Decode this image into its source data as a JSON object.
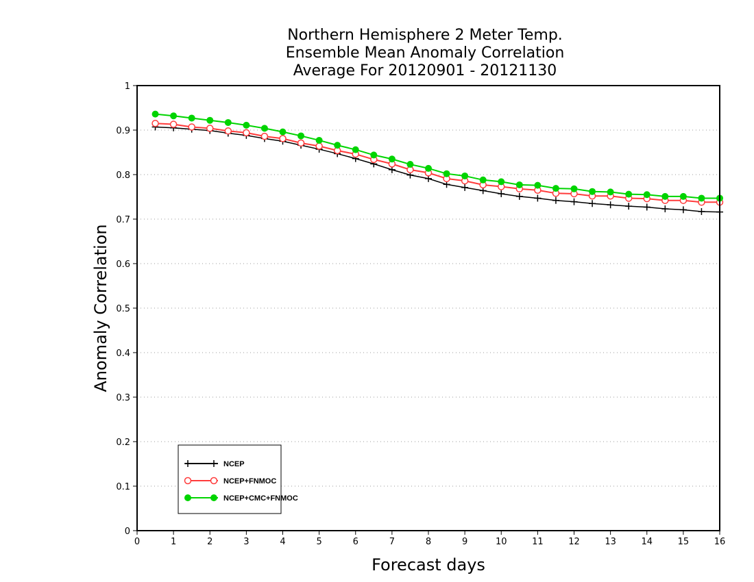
{
  "chart_data": {
    "type": "line",
    "title_lines": [
      "Northern Hemisphere 2 Meter Temp.",
      "Ensemble Mean Anomaly Correlation",
      "Average For 20120901 - 20121130"
    ],
    "xlabel": "Forecast days",
    "ylabel": "Anomaly Correlation",
    "xlim": [
      0,
      16
    ],
    "ylim": [
      0,
      1
    ],
    "x_ticks": [
      "0",
      "1",
      "2",
      "3",
      "4",
      "5",
      "6",
      "7",
      "8",
      "9",
      "10",
      "11",
      "12",
      "13",
      "14",
      "15",
      "16"
    ],
    "y_ticks": [
      "0",
      "0.1",
      "0.2",
      "0.3",
      "0.4",
      "0.5",
      "0.6",
      "0.7",
      "0.8",
      "0.9",
      "1"
    ],
    "grid": "horizontal dotted",
    "legend_position": "bottom-left",
    "x": [
      0.5,
      1,
      1.5,
      2,
      2.5,
      3,
      3.5,
      4,
      4.5,
      5,
      5.5,
      6,
      6.5,
      7,
      7.5,
      8,
      8.5,
      9,
      9.5,
      10,
      10.5,
      11,
      11.5,
      12,
      12.5,
      13,
      13.5,
      14,
      14.5,
      15,
      15.5,
      16
    ],
    "series": [
      {
        "name": "NCEP",
        "color": "#000000",
        "marker": "plus",
        "values": [
          0.907,
          0.905,
          0.902,
          0.899,
          0.893,
          0.888,
          0.881,
          0.875,
          0.866,
          0.857,
          0.847,
          0.836,
          0.824,
          0.811,
          0.799,
          0.791,
          0.778,
          0.771,
          0.764,
          0.757,
          0.751,
          0.747,
          0.742,
          0.739,
          0.735,
          0.732,
          0.729,
          0.727,
          0.723,
          0.721,
          0.717,
          0.716
        ]
      },
      {
        "name": "NCEP+FNMOC",
        "color": "#ff3b3b",
        "marker": "open-circle",
        "values": [
          0.915,
          0.913,
          0.907,
          0.904,
          0.898,
          0.894,
          0.886,
          0.881,
          0.871,
          0.864,
          0.854,
          0.846,
          0.834,
          0.824,
          0.811,
          0.804,
          0.791,
          0.786,
          0.777,
          0.773,
          0.768,
          0.765,
          0.758,
          0.757,
          0.752,
          0.752,
          0.747,
          0.746,
          0.742,
          0.742,
          0.738,
          0.738
        ]
      },
      {
        "name": "NCEP+CMC+FNMOC",
        "color": "#00d400",
        "marker": "filled-circle",
        "values": [
          0.936,
          0.932,
          0.927,
          0.922,
          0.917,
          0.911,
          0.904,
          0.896,
          0.887,
          0.877,
          0.866,
          0.856,
          0.844,
          0.835,
          0.823,
          0.814,
          0.802,
          0.797,
          0.788,
          0.784,
          0.777,
          0.776,
          0.769,
          0.768,
          0.762,
          0.761,
          0.756,
          0.755,
          0.751,
          0.751,
          0.747,
          0.747
        ]
      }
    ]
  }
}
